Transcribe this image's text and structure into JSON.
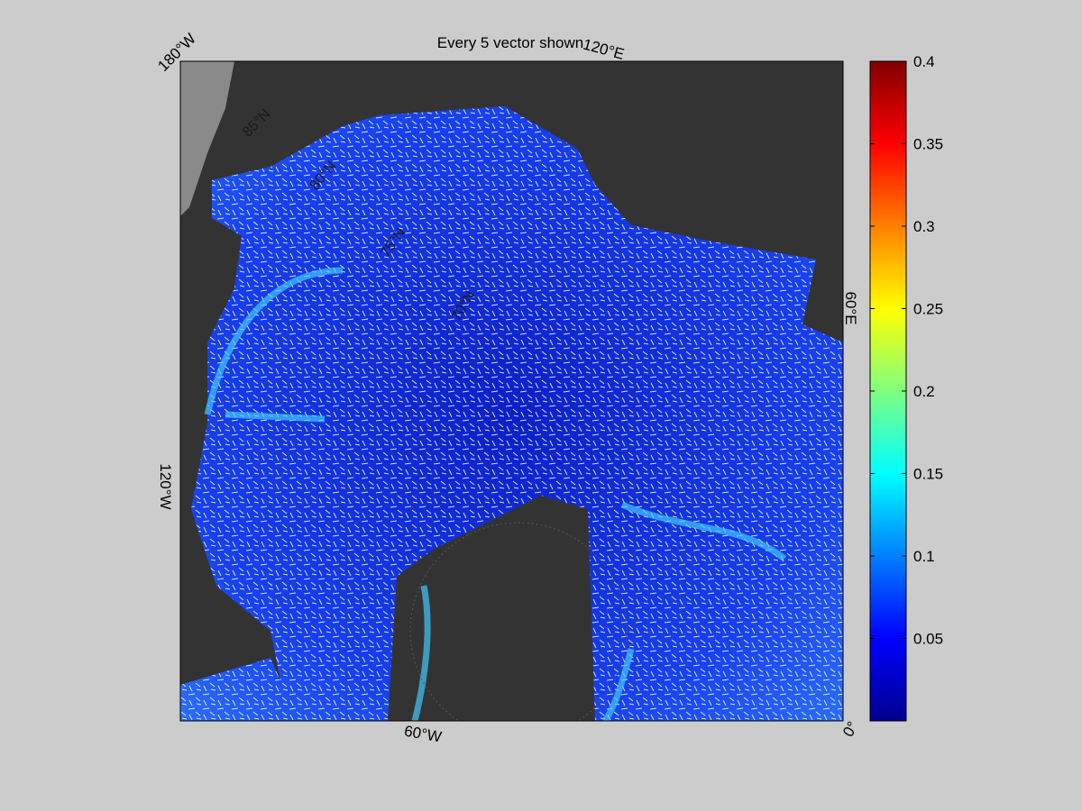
{
  "title": "Every 5 vector shown",
  "map": {
    "lon_labels": [
      "180°W",
      "120°E",
      "60°E",
      "0°",
      "60°W",
      "120°W"
    ],
    "lat_labels": [
      "85°N",
      "80°N",
      "75°N",
      "70°N"
    ]
  },
  "colorbar": {
    "clim": [
      0,
      0.4
    ],
    "ticks": [
      0.05,
      0.1,
      0.15,
      0.2,
      0.25,
      0.3,
      0.35,
      0.4
    ]
  }
}
